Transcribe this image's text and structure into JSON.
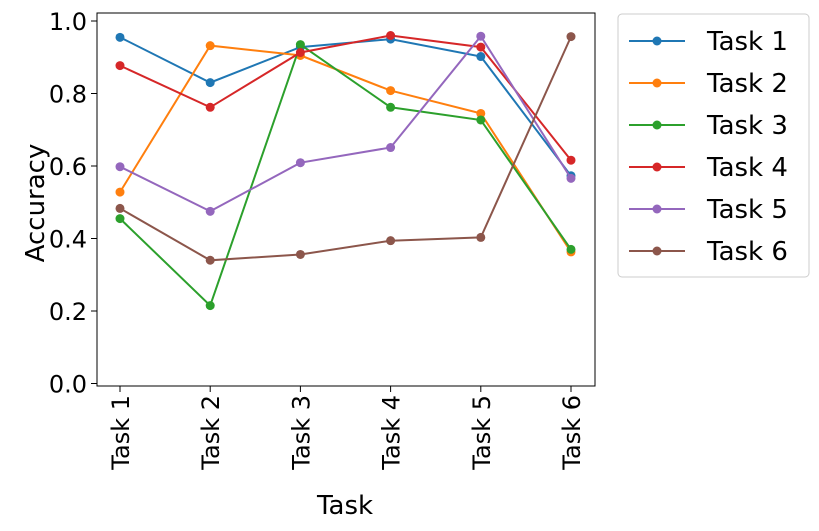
{
  "chart_data": {
    "type": "line",
    "categories": [
      "Task 1",
      "Task 2",
      "Task 3",
      "Task 4",
      "Task 5",
      "Task 6"
    ],
    "xlabel": "Task",
    "ylabel": "Accuracy",
    "ylim": [
      0.0,
      1.0
    ],
    "yticks": [
      "0.0",
      "0.2",
      "0.4",
      "0.6",
      "0.8",
      "1.0"
    ],
    "grid": false,
    "legend_position": "outside-right-top",
    "series": [
      {
        "name": "Task 1",
        "color": "#1f77b4",
        "values": [
          0.955,
          0.83,
          0.928,
          0.95,
          0.902,
          0.573
        ]
      },
      {
        "name": "Task 2",
        "color": "#ff7f0e",
        "values": [
          0.528,
          0.932,
          0.905,
          0.808,
          0.745,
          0.363
        ]
      },
      {
        "name": "Task 3",
        "color": "#2ca02c",
        "values": [
          0.455,
          0.215,
          0.935,
          0.762,
          0.727,
          0.37
        ]
      },
      {
        "name": "Task 4",
        "color": "#d62728",
        "values": [
          0.877,
          0.762,
          0.913,
          0.96,
          0.928,
          0.616
        ]
      },
      {
        "name": "Task 5",
        "color": "#9467bd",
        "values": [
          0.598,
          0.475,
          0.609,
          0.651,
          0.958,
          0.566
        ]
      },
      {
        "name": "Task 6",
        "color": "#8c564b",
        "values": [
          0.483,
          0.34,
          0.356,
          0.394,
          0.403,
          0.957
        ]
      }
    ]
  }
}
